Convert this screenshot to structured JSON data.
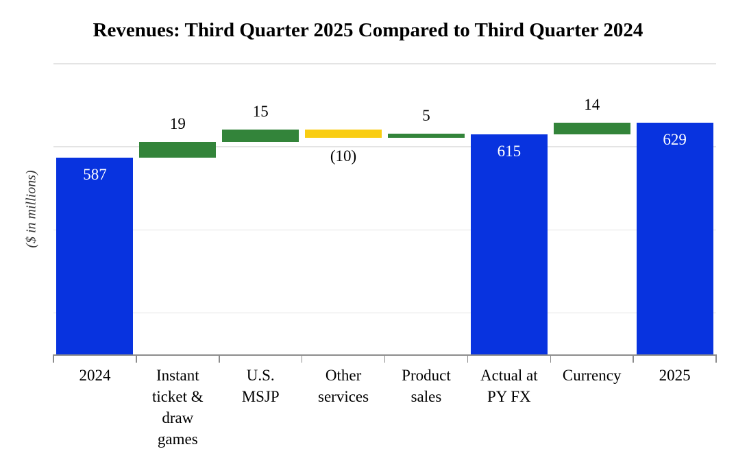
{
  "chart_data": {
    "type": "bar",
    "subtype": "waterfall",
    "title": "Revenues: Third Quarter 2025 Compared to Third Quarter 2024",
    "ylabel": "($ in millions)",
    "xlabel": "",
    "legend": "none",
    "grid": "horizontal",
    "y_axis": {
      "min": 350,
      "max": 700,
      "major_unit": 100,
      "gridlines_at": [
        400,
        500,
        600,
        700
      ],
      "tick_labels_visible": false
    },
    "colors": {
      "total_bar": "#0833df",
      "increase_bar": "#33843a",
      "decrease_bar": "#f9cd12",
      "gridline": "#e4e4e4",
      "axis_line": "#8c8c8c",
      "inside_label": "#ffffff",
      "outside_label": "#000000"
    },
    "bars": [
      {
        "category": "2024",
        "category_display": "2024",
        "kind": "total",
        "value": 587,
        "value_label": "587",
        "label_position": "inside"
      },
      {
        "category": "Instant ticket & draw games",
        "category_display": "Instant\nticket &\ndraw\ngames",
        "kind": "increase",
        "change": 19,
        "cumulative_start": 587,
        "cumulative_end": 606,
        "value_label": "19",
        "label_position": "above"
      },
      {
        "category": "U.S. MSJP",
        "category_display": "U.S.\nMSJP",
        "kind": "increase",
        "change": 15,
        "cumulative_start": 606,
        "cumulative_end": 621,
        "value_label": "15",
        "label_position": "above"
      },
      {
        "category": "Other services",
        "category_display": "Other\nservices",
        "kind": "decrease",
        "change": -10,
        "cumulative_start": 621,
        "cumulative_end": 611,
        "value_label": "(10)",
        "label_position": "below"
      },
      {
        "category": "Product sales",
        "category_display": "Product\nsales",
        "kind": "increase",
        "change": 5,
        "cumulative_start": 611,
        "cumulative_end": 616,
        "value_label": "5",
        "label_position": "above"
      },
      {
        "category": "Actual at PY FX",
        "category_display": "Actual at\nPY FX",
        "kind": "total",
        "value": 615,
        "value_label": "615",
        "label_position": "inside"
      },
      {
        "category": "Currency",
        "category_display": "Currency",
        "kind": "increase",
        "change": 14,
        "cumulative_start": 615,
        "cumulative_end": 629,
        "value_label": "14",
        "label_position": "above"
      },
      {
        "category": "2025",
        "category_display": "2025",
        "kind": "total",
        "value": 629,
        "value_label": "629",
        "label_position": "inside"
      }
    ]
  }
}
